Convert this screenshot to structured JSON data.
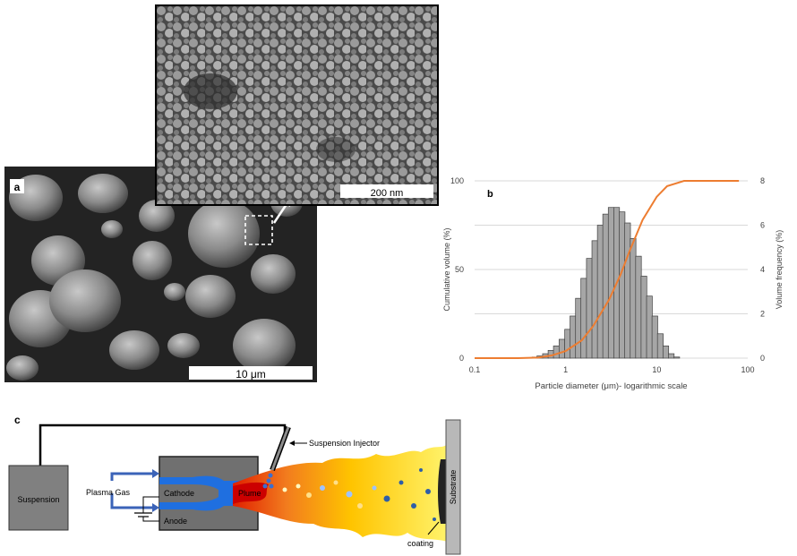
{
  "panel_a": {
    "label": "a",
    "main_scale_bar": "10 μm",
    "inset_scale_bar": "200 nm"
  },
  "panel_b": {
    "label": "b"
  },
  "chart_data": {
    "type": "bar",
    "xlabel": "Particle diameter (μm)- logarithmic scale",
    "ylabel_left": "Cumulative volume (%)",
    "ylabel_right": "Volume frequency (%)",
    "x_scale": "log",
    "xlim": [
      0.1,
      100
    ],
    "x_ticks": [
      "0.1",
      "1",
      "10",
      "100"
    ],
    "ylim_left": [
      0,
      100
    ],
    "y_ticks_left": [
      "0",
      "50",
      "100"
    ],
    "ylim_right": [
      0,
      8
    ],
    "y_ticks_right": [
      "0",
      "2",
      "4",
      "6",
      "8"
    ],
    "grid": true,
    "series": [
      {
        "type": "bar",
        "axis": "right",
        "color": "#a6a6a6",
        "x": [
          0.46,
          0.52,
          0.6,
          0.69,
          0.79,
          0.91,
          1.05,
          1.2,
          1.38,
          1.58,
          1.82,
          2.09,
          2.4,
          2.75,
          3.16,
          3.63,
          4.17,
          4.79,
          5.5,
          6.31,
          7.24,
          8.32,
          9.55,
          10.96,
          12.59,
          14.45,
          16.6
        ],
        "values": [
          0.05,
          0.1,
          0.2,
          0.35,
          0.55,
          0.85,
          1.3,
          1.9,
          2.7,
          3.6,
          4.5,
          5.3,
          6.0,
          6.5,
          6.8,
          6.8,
          6.6,
          6.1,
          5.4,
          4.6,
          3.7,
          2.8,
          1.9,
          1.1,
          0.55,
          0.2,
          0.05
        ]
      },
      {
        "type": "line",
        "axis": "left",
        "color": "#ed7d31",
        "x": [
          0.1,
          0.3,
          0.5,
          0.7,
          1,
          1.5,
          2,
          3,
          4,
          5,
          7,
          10,
          13,
          20,
          40,
          80
        ],
        "values": [
          0,
          0,
          0.3,
          1.5,
          4,
          10,
          18,
          33,
          47,
          60,
          78,
          91,
          97,
          100,
          100,
          100
        ]
      }
    ]
  },
  "panel_c": {
    "label": "c",
    "labels": {
      "suspension_injector": "Suspension Injector",
      "suspension": "Suspension",
      "plasma_gas": "Plasma Gas",
      "cathode": "Cathode",
      "anode": "Anode",
      "plume": "Plume",
      "substrate": "Substrate",
      "coating": "coating"
    },
    "colors": {
      "plasma_blue": "#1f6fe0",
      "plume_red": "#cc0000",
      "flame_orange": "#f27c1e",
      "flame_yellow": "#ffe600"
    }
  }
}
